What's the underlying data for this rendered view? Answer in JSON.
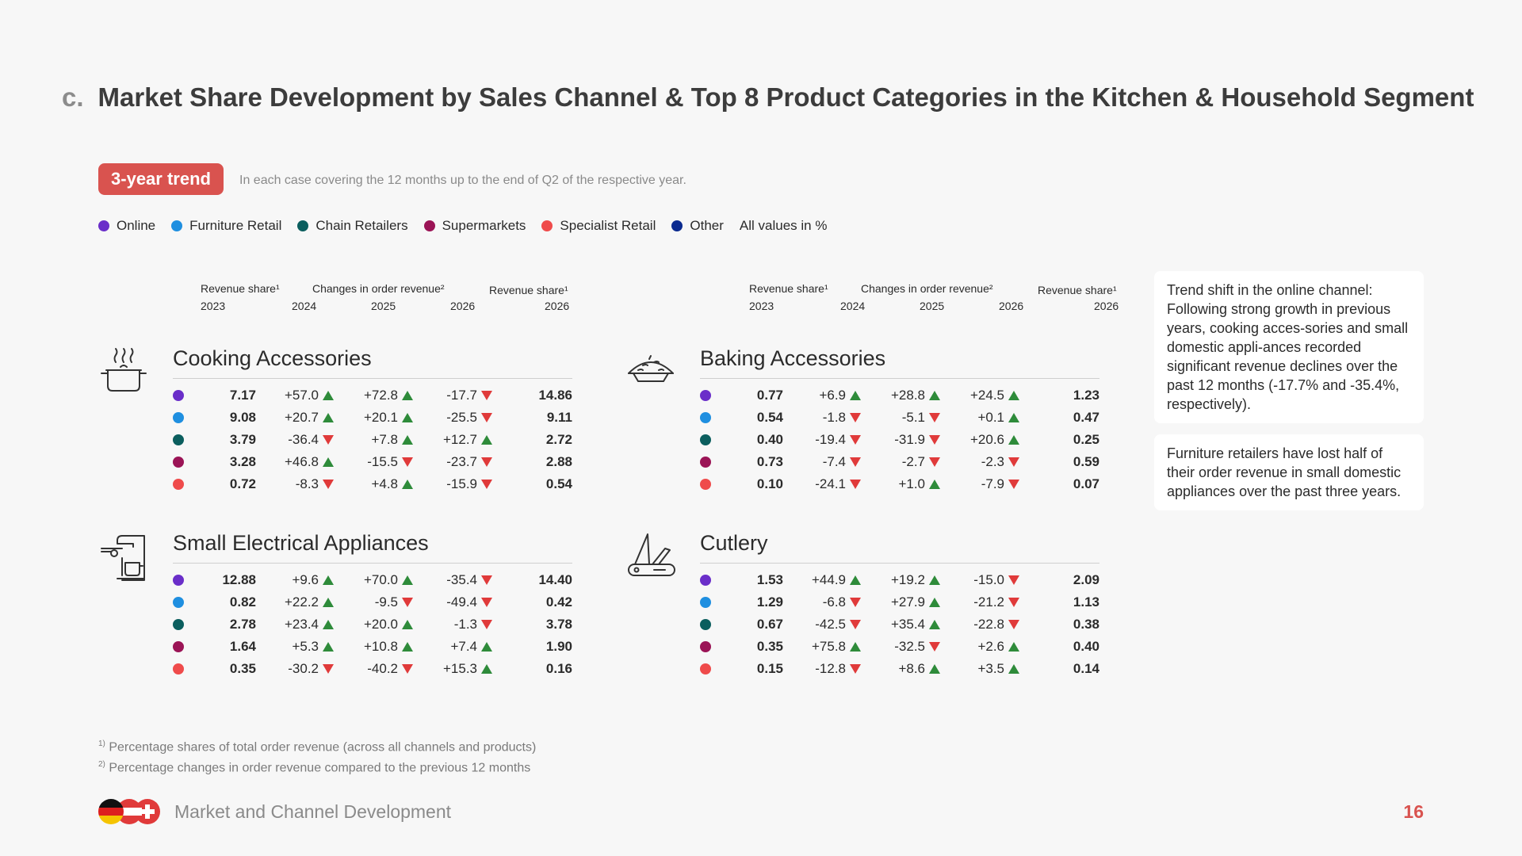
{
  "header": {
    "letter": "c.",
    "title": "Market Share Development by Sales Channel & Top 8 Product Categories in the Kitchen & Household Segment"
  },
  "trend": {
    "badge": "3-year trend",
    "note": "In each case covering the 12 months up to the end of Q2 of the respective year."
  },
  "legend": {
    "items": [
      {
        "label": "Online",
        "color": "#6a2ec9"
      },
      {
        "label": "Furniture Retail",
        "color": "#1f8fe0"
      },
      {
        "label": "Chain Retailers",
        "color": "#0b5e5e"
      },
      {
        "label": "Supermarkets",
        "color": "#9b1456"
      },
      {
        "label": "Specialist Retail",
        "color": "#ef4b4b"
      },
      {
        "label": "Other",
        "color": "#0b2a8f"
      }
    ],
    "units_note": "All values in %"
  },
  "column_headers": {
    "share_label": "Revenue share¹",
    "share_2023": "2023",
    "changes_label": "Changes in order revenue²",
    "y2024": "2024",
    "y2025": "2025",
    "y2026": "2026",
    "share_end_label": "Revenue share¹",
    "share_2026": "2026"
  },
  "blocks": [
    {
      "name": "Cooking Accessories",
      "icon": "cooking-pot-icon",
      "rows": [
        {
          "channel": "Online",
          "share2023": "7.17",
          "c2024": "+57.0",
          "d2024": "up",
          "c2025": "+72.8",
          "d2025": "up",
          "c2026": "-17.7",
          "d2026": "down",
          "share2026": "14.86"
        },
        {
          "channel": "Furniture Retail",
          "share2023": "9.08",
          "c2024": "+20.7",
          "d2024": "up",
          "c2025": "+20.1",
          "d2025": "up",
          "c2026": "-25.5",
          "d2026": "down",
          "share2026": "9.11"
        },
        {
          "channel": "Chain Retailers",
          "share2023": "3.79",
          "c2024": "-36.4",
          "d2024": "down",
          "c2025": "+7.8",
          "d2025": "up",
          "c2026": "+12.7",
          "d2026": "up",
          "share2026": "2.72"
        },
        {
          "channel": "Supermarkets",
          "share2023": "3.28",
          "c2024": "+46.8",
          "d2024": "up",
          "c2025": "-15.5",
          "d2025": "down",
          "c2026": "-23.7",
          "d2026": "down",
          "share2026": "2.88"
        },
        {
          "channel": "Specialist Retail",
          "share2023": "0.72",
          "c2024": "-8.3",
          "d2024": "down",
          "c2025": "+4.8",
          "d2025": "up",
          "c2026": "-15.9",
          "d2026": "down",
          "share2026": "0.54"
        }
      ]
    },
    {
      "name": "Baking Accessories",
      "icon": "pie-icon",
      "rows": [
        {
          "channel": "Online",
          "share2023": "0.77",
          "c2024": "+6.9",
          "d2024": "up",
          "c2025": "+28.8",
          "d2025": "up",
          "c2026": "+24.5",
          "d2026": "up",
          "share2026": "1.23"
        },
        {
          "channel": "Furniture Retail",
          "share2023": "0.54",
          "c2024": "-1.8",
          "d2024": "down",
          "c2025": "-5.1",
          "d2025": "down",
          "c2026": "+0.1",
          "d2026": "up",
          "share2026": "0.47"
        },
        {
          "channel": "Chain Retailers",
          "share2023": "0.40",
          "c2024": "-19.4",
          "d2024": "down",
          "c2025": "-31.9",
          "d2025": "down",
          "c2026": "+20.6",
          "d2026": "up",
          "share2026": "0.25"
        },
        {
          "channel": "Supermarkets",
          "share2023": "0.73",
          "c2024": "-7.4",
          "d2024": "down",
          "c2025": "-2.7",
          "d2025": "down",
          "c2026": "-2.3",
          "d2026": "down",
          "share2026": "0.59"
        },
        {
          "channel": "Specialist Retail",
          "share2023": "0.10",
          "c2024": "-24.1",
          "d2024": "down",
          "c2025": "+1.0",
          "d2025": "up",
          "c2026": "-7.9",
          "d2026": "down",
          "share2026": "0.07"
        }
      ]
    },
    {
      "name": "Small Electrical Appliances",
      "icon": "coffee-machine-icon",
      "rows": [
        {
          "channel": "Online",
          "share2023": "12.88",
          "c2024": "+9.6",
          "d2024": "up",
          "c2025": "+70.0",
          "d2025": "up",
          "c2026": "-35.4",
          "d2026": "down",
          "share2026": "14.40"
        },
        {
          "channel": "Furniture Retail",
          "share2023": "0.82",
          "c2024": "+22.2",
          "d2024": "up",
          "c2025": "-9.5",
          "d2025": "down",
          "c2026": "-49.4",
          "d2026": "down",
          "share2026": "0.42"
        },
        {
          "channel": "Chain Retailers",
          "share2023": "2.78",
          "c2024": "+23.4",
          "d2024": "up",
          "c2025": "+20.0",
          "d2025": "up",
          "c2026": "-1.3",
          "d2026": "down",
          "share2026": "3.78"
        },
        {
          "channel": "Supermarkets",
          "share2023": "1.64",
          "c2024": "+5.3",
          "d2024": "up",
          "c2025": "+10.8",
          "d2025": "up",
          "c2026": "+7.4",
          "d2026": "up",
          "share2026": "1.90"
        },
        {
          "channel": "Specialist Retail",
          "share2023": "0.35",
          "c2024": "-30.2",
          "d2024": "down",
          "c2025": "-40.2",
          "d2025": "down",
          "c2026": "+15.3",
          "d2026": "up",
          "share2026": "0.16"
        }
      ]
    },
    {
      "name": "Cutlery",
      "icon": "pocket-knife-icon",
      "rows": [
        {
          "channel": "Online",
          "share2023": "1.53",
          "c2024": "+44.9",
          "d2024": "up",
          "c2025": "+19.2",
          "d2025": "up",
          "c2026": "-15.0",
          "d2026": "down",
          "share2026": "2.09"
        },
        {
          "channel": "Furniture Retail",
          "share2023": "1.29",
          "c2024": "-6.8",
          "d2024": "down",
          "c2025": "+27.9",
          "d2025": "up",
          "c2026": "-21.2",
          "d2026": "down",
          "share2026": "1.13"
        },
        {
          "channel": "Chain Retailers",
          "share2023": "0.67",
          "c2024": "-42.5",
          "d2024": "down",
          "c2025": "+35.4",
          "d2025": "up",
          "c2026": "-22.8",
          "d2026": "down",
          "share2026": "0.38"
        },
        {
          "channel": "Supermarkets",
          "share2023": "0.35",
          "c2024": "+75.8",
          "d2024": "up",
          "c2025": "-32.5",
          "d2025": "down",
          "c2026": "+2.6",
          "d2026": "up",
          "share2026": "0.40"
        },
        {
          "channel": "Specialist Retail",
          "share2023": "0.15",
          "c2024": "-12.8",
          "d2024": "down",
          "c2025": "+8.6",
          "d2025": "up",
          "c2026": "+3.5",
          "d2026": "up",
          "share2026": "0.14"
        }
      ]
    }
  ],
  "notes": [
    "Trend shift in the online channel: Following strong growth in previous years, cooking acces-sories and small domestic appli-ances recorded significant revenue declines over the past 12 months (-17.7% and -35.4%, respectively).",
    "Furniture retailers have lost half of their order revenue in small domestic appliances over the past three years."
  ],
  "footnotes": {
    "f1_mark": "1)",
    "f1": "Percentage shares of total order revenue (across all channels and products)",
    "f2_mark": "2)",
    "f2": "Percentage changes in order revenue compared to the previous 12 months"
  },
  "footer": {
    "label": "Market and Channel Development",
    "page": "16"
  },
  "colors": {
    "accent": "#d9534f",
    "up": "#2e8b3a",
    "down": "#e03a3a"
  }
}
